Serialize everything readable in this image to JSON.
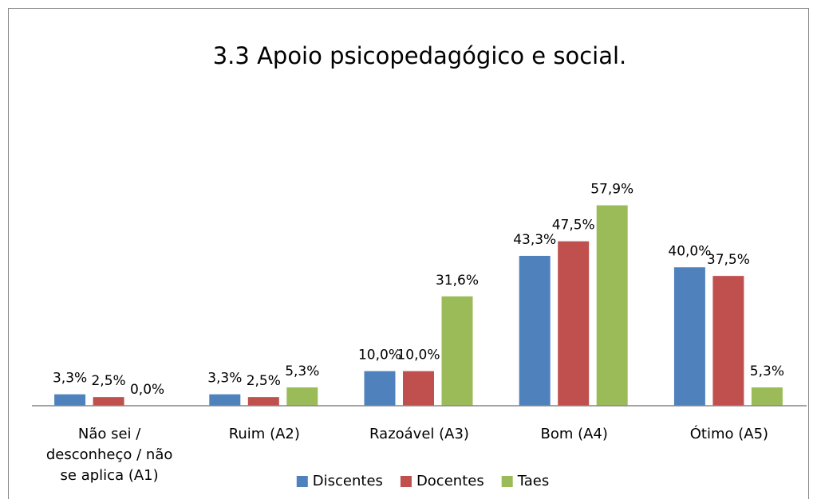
{
  "chart_data": {
    "type": "bar",
    "title": "3.3 Apoio psicopedagógico e social.",
    "categories": [
      "Não sei / desconheço / não se aplica (A1)",
      "Ruim (A2)",
      "Razoável (A3)",
      "Bom (A4)",
      "Ótimo (A5)"
    ],
    "series": [
      {
        "name": "Discentes",
        "color": "#4f81bd",
        "values": [
          3.3,
          3.3,
          10.0,
          43.3,
          40.0
        ],
        "value_labels": [
          "3,3%",
          "3,3%",
          "10,0%",
          "43,3%",
          "40,0%"
        ]
      },
      {
        "name": "Docentes",
        "color": "#c0504d",
        "values": [
          2.5,
          2.5,
          10.0,
          47.5,
          37.5
        ],
        "value_labels": [
          "2,5%",
          "2,5%",
          "10,0%",
          "47,5%",
          "37,5%"
        ]
      },
      {
        "name": "Taes",
        "color": "#9bbb59",
        "values": [
          0.0,
          5.3,
          31.6,
          57.9,
          5.3
        ],
        "value_labels": [
          "0,0%",
          "5,3%",
          "31,6%",
          "57,9%",
          "5,3%"
        ]
      }
    ],
    "ylim": [
      0,
      70
    ],
    "legend": "bottom"
  }
}
